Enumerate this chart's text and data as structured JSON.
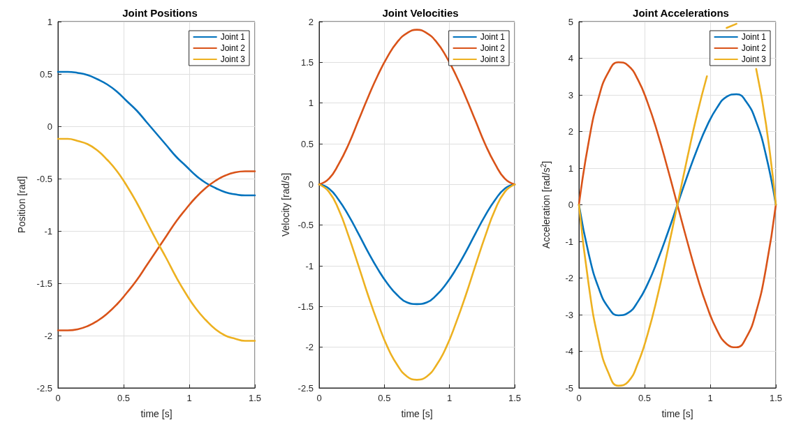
{
  "chart_data": [
    {
      "type": "line",
      "title": "Joint Positions",
      "xlabel": "time [s]",
      "ylabel": "Position [rad]",
      "x": [
        0,
        0.075,
        0.15,
        0.225,
        0.3,
        0.375,
        0.45,
        0.525,
        0.6,
        0.675,
        0.75,
        0.825,
        0.9,
        0.975,
        1.05,
        1.125,
        1.2,
        1.275,
        1.35,
        1.425,
        1.5
      ],
      "xlim": [
        0,
        1.5
      ],
      "xticks": [
        0,
        0.5,
        1,
        1.5
      ],
      "ylim": [
        -2.5,
        1
      ],
      "yticks": [
        -2.5,
        -2,
        -1.5,
        -1,
        -0.5,
        0,
        0.5,
        1
      ],
      "grid": true,
      "legend": "top right",
      "series": [
        {
          "name": "Joint 1",
          "color": "#0072bd",
          "values": [
            0.52,
            0.52,
            0.51,
            0.49,
            0.45,
            0.4,
            0.33,
            0.24,
            0.15,
            0.04,
            -0.07,
            -0.18,
            -0.29,
            -0.38,
            -0.47,
            -0.54,
            -0.59,
            -0.63,
            -0.65,
            -0.66,
            -0.66
          ]
        },
        {
          "name": "Joint 2",
          "color": "#d95319",
          "values": [
            -1.95,
            -1.95,
            -1.94,
            -1.91,
            -1.86,
            -1.79,
            -1.7,
            -1.59,
            -1.47,
            -1.33,
            -1.19,
            -1.05,
            -0.91,
            -0.79,
            -0.68,
            -0.59,
            -0.52,
            -0.47,
            -0.44,
            -0.43,
            -0.43
          ]
        },
        {
          "name": "Joint 3",
          "color": "#edb120",
          "values": [
            -0.12,
            -0.12,
            -0.14,
            -0.17,
            -0.23,
            -0.32,
            -0.43,
            -0.57,
            -0.73,
            -0.91,
            -1.09,
            -1.26,
            -1.44,
            -1.6,
            -1.74,
            -1.85,
            -1.94,
            -2,
            -2.03,
            -2.05,
            -2.05
          ]
        }
      ]
    },
    {
      "type": "line",
      "title": "Joint Velocities",
      "xlabel": "time [s]",
      "ylabel": "Velocity [rad/s]",
      "x": [
        0,
        0.075,
        0.15,
        0.225,
        0.3,
        0.375,
        0.45,
        0.525,
        0.6,
        0.675,
        0.75,
        0.825,
        0.9,
        0.975,
        1.05,
        1.125,
        1.2,
        1.275,
        1.35,
        1.425,
        1.5
      ],
      "xlim": [
        0,
        1.5
      ],
      "xticks": [
        0,
        0.5,
        1,
        1.5
      ],
      "ylim": [
        -2.5,
        2
      ],
      "yticks": [
        -2.5,
        -2,
        -1.5,
        -1,
        -0.5,
        0,
        0.5,
        1,
        1.5,
        2
      ],
      "grid": true,
      "legend": "top right",
      "series": [
        {
          "name": "Joint 1",
          "color": "#0072bd",
          "values": [
            0,
            -0.05,
            -0.19,
            -0.38,
            -0.6,
            -0.83,
            -1.04,
            -1.22,
            -1.36,
            -1.45,
            -1.47,
            -1.45,
            -1.36,
            -1.22,
            -1.04,
            -0.83,
            -0.6,
            -0.38,
            -0.19,
            -0.05,
            0
          ]
        },
        {
          "name": "Joint 2",
          "color": "#d95319",
          "values": [
            0,
            0.07,
            0.25,
            0.49,
            0.78,
            1.07,
            1.34,
            1.57,
            1.75,
            1.86,
            1.9,
            1.86,
            1.75,
            1.57,
            1.34,
            1.07,
            0.78,
            0.49,
            0.25,
            0.07,
            0
          ]
        },
        {
          "name": "Joint 3",
          "color": "#edb120",
          "values": [
            0,
            -0.09,
            -0.31,
            -0.63,
            -0.99,
            -1.36,
            -1.7,
            -2,
            -2.22,
            -2.36,
            -2.4,
            -2.36,
            -2.22,
            -2,
            -1.7,
            -1.36,
            -0.99,
            -0.63,
            -0.31,
            -0.09,
            0
          ]
        }
      ]
    },
    {
      "type": "line",
      "title": "Joint Accelerations",
      "xlabel": "time [s]",
      "ylabel": "Acceleration [rad/s$^{2}$]",
      "x": [
        0,
        0.075,
        0.15,
        0.225,
        0.3,
        0.375,
        0.45,
        0.525,
        0.6,
        0.675,
        0.75,
        0.825,
        0.9,
        0.975,
        1.05,
        1.125,
        1.2,
        1.275,
        1.35,
        1.425,
        1.5
      ],
      "xlim": [
        0,
        1.5
      ],
      "xticks": [
        0,
        0.5,
        1,
        1.5
      ],
      "ylim": [
        -5,
        5
      ],
      "yticks": [
        -5,
        -4,
        -3,
        -2,
        -1,
        0,
        1,
        2,
        3,
        4,
        5
      ],
      "grid": true,
      "legend": "top right",
      "series": [
        {
          "name": "Joint 1",
          "color": "#0072bd",
          "values": [
            0,
            -1.35,
            -2.27,
            -2.81,
            -3.02,
            -2.95,
            -2.64,
            -2.15,
            -1.51,
            -0.78,
            0,
            0.78,
            1.51,
            2.15,
            2.64,
            2.95,
            3.02,
            2.81,
            2.27,
            1.35,
            0
          ]
        },
        {
          "name": "Joint 2",
          "color": "#d95319",
          "values": [
            0,
            1.73,
            2.92,
            3.62,
            3.89,
            3.8,
            3.41,
            2.77,
            1.95,
            1,
            0,
            -1,
            -1.95,
            -2.77,
            -3.41,
            -3.8,
            -3.89,
            -3.62,
            -2.92,
            -1.73,
            0
          ]
        },
        {
          "name": "Joint 3",
          "color": "#edb120",
          "values": [
            0,
            -2.2,
            -3.71,
            -4.59,
            -4.94,
            -4.83,
            -4.32,
            -3.51,
            -2.47,
            -1.27,
            0,
            1.27,
            2.47,
            3.51,
            null,
            4.83,
            4.94,
            null,
            3.71,
            2.2,
            0
          ]
        }
      ]
    }
  ]
}
